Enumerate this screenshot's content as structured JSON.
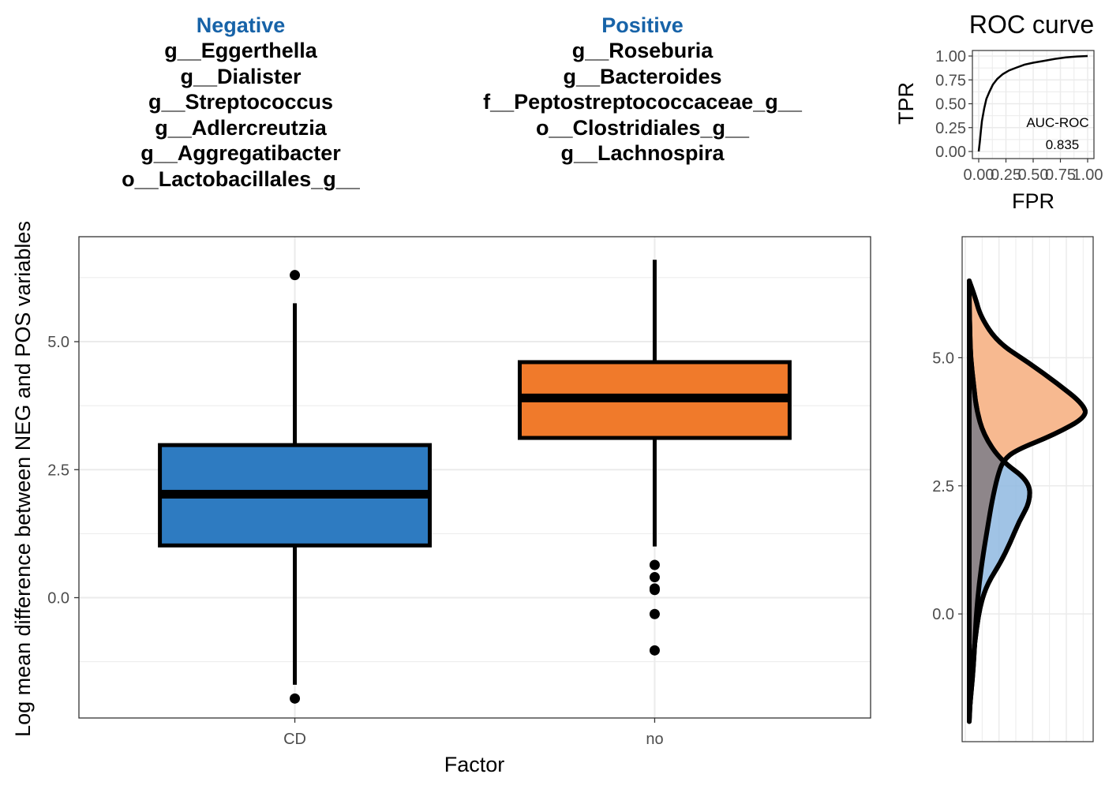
{
  "header": {
    "negative_label": "Negative",
    "positive_label": "Positive",
    "negative_taxa": [
      "g__Eggerthella",
      "g__Dialister",
      "g__Streptococcus",
      "g__Adlercreutzia",
      "g__Aggregatibacter",
      "o__Lactobacillales_g__"
    ],
    "positive_taxa": [
      "g__Roseburia",
      "g__Bacteroides",
      "f__Peptostreptococcaceae_g__",
      "o__Clostridiales_g__",
      "g__Lachnospira"
    ]
  },
  "colors": {
    "neg_title": "#1763a8",
    "cd_box": "#2e7bc1",
    "no_box": "#f07a2b",
    "cd_density": "#8fb8e0",
    "no_density": "#f7b990",
    "overlap_density": "#b98c78",
    "grid": "#ebebeb"
  },
  "chart_data": [
    {
      "type": "box",
      "xlabel": "Factor",
      "ylabel": "Log mean difference between NEG and POS variables",
      "categories": [
        "CD",
        "no"
      ],
      "ylim": [
        -2.35,
        7.05
      ],
      "yticks": [
        0.0,
        2.5,
        5.0
      ],
      "ytick_labels": [
        "0.0",
        "2.5",
        "5.0"
      ],
      "grid": true,
      "boxes": [
        {
          "name": "CD",
          "q1": 1.02,
          "median": 2.02,
          "q3": 2.98,
          "whisker_low": -1.7,
          "whisker_high": 5.75,
          "outliers": [
            6.3,
            -1.97
          ]
        },
        {
          "name": "no",
          "q1": 3.12,
          "median": 3.9,
          "q3": 4.6,
          "whisker_low": 1.0,
          "whisker_high": 6.6,
          "outliers": [
            0.64,
            0.4,
            0.18,
            0.15,
            -0.32,
            -1.03
          ]
        }
      ]
    },
    {
      "type": "line",
      "title": "ROC curve",
      "xlabel": "FPR",
      "ylabel": "TPR",
      "xlim": [
        0,
        1
      ],
      "ylim": [
        0,
        1
      ],
      "xticks": [
        0.0,
        0.25,
        0.5,
        0.75,
        1.0
      ],
      "xtick_labels": [
        "0.00",
        "0.25",
        "0.50",
        "0.75",
        "1.00"
      ],
      "yticks": [
        0.0,
        0.25,
        0.5,
        0.75,
        1.0
      ],
      "ytick_labels": [
        "0.00",
        "0.25",
        "0.50",
        "0.75",
        "1.00"
      ],
      "grid": true,
      "auc_label": "AUC-ROC",
      "auc_value": "0.835",
      "x": [
        0,
        0.01,
        0.02,
        0.03,
        0.05,
        0.07,
        0.1,
        0.13,
        0.17,
        0.22,
        0.28,
        0.35,
        0.42,
        0.5,
        0.6,
        0.7,
        0.8,
        0.9,
        1.0
      ],
      "y": [
        0,
        0.1,
        0.22,
        0.32,
        0.45,
        0.55,
        0.63,
        0.7,
        0.76,
        0.81,
        0.85,
        0.88,
        0.91,
        0.93,
        0.95,
        0.97,
        0.985,
        0.995,
        1.0
      ]
    },
    {
      "type": "area",
      "orientation": "horizontal",
      "ylim": [
        -2.2,
        6.9
      ],
      "yticks": [
        0.0,
        2.5,
        5.0
      ],
      "ytick_labels": [
        "0.0",
        "2.5",
        "5.0"
      ],
      "grid": true,
      "series": [
        {
          "name": "no",
          "y": [
            6.5,
            6.2,
            5.8,
            5.3,
            4.9,
            4.5,
            4.1,
            3.85,
            3.5,
            3.2,
            3.0,
            2.7,
            2.2,
            1.7,
            1.2,
            0.6,
            0.0,
            -0.5,
            -1.0,
            -1.5,
            -1.95
          ],
          "density": [
            0.0,
            0.04,
            0.08,
            0.2,
            0.42,
            0.62,
            0.8,
            0.83,
            0.6,
            0.33,
            0.24,
            0.2,
            0.16,
            0.13,
            0.1,
            0.07,
            0.05,
            0.04,
            0.03,
            0.015,
            0.0
          ]
        },
        {
          "name": "CD",
          "y": [
            6.5,
            6.0,
            5.5,
            5.0,
            4.5,
            4.0,
            3.5,
            3.0,
            2.6,
            2.2,
            1.8,
            1.4,
            1.0,
            0.6,
            0.2,
            -0.3,
            -0.8,
            -1.3,
            -1.8,
            -2.1
          ],
          "density": [
            0.0,
            0.0,
            0.005,
            0.01,
            0.03,
            0.05,
            0.1,
            0.22,
            0.42,
            0.43,
            0.35,
            0.29,
            0.22,
            0.13,
            0.08,
            0.05,
            0.03,
            0.015,
            0.005,
            0.0
          ]
        }
      ]
    }
  ]
}
